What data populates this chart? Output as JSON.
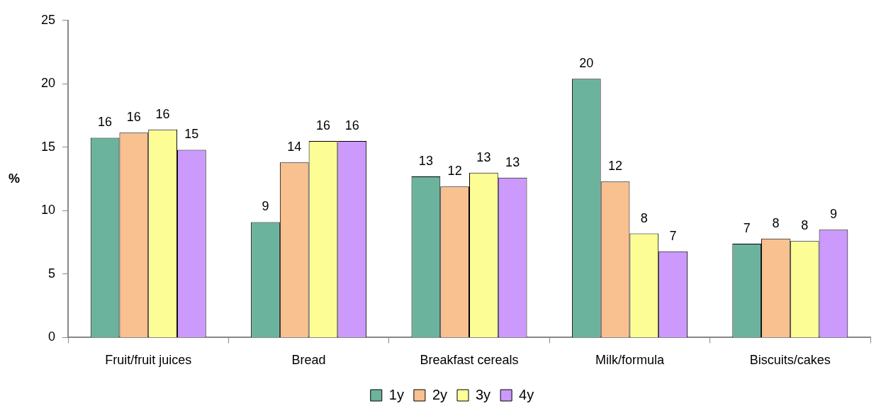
{
  "chart_data": {
    "type": "bar",
    "ylabel": "%",
    "categories": [
      "Fruit/fruit juices",
      "Bread",
      "Breakfast cereals",
      "Milk/formula",
      "Biscuits/cakes"
    ],
    "series": [
      {
        "name": "1y",
        "color": "#6bb39d",
        "values": [
          15.75,
          9.1,
          12.7,
          20.4,
          7.4
        ],
        "value_labels": [
          "16",
          "9",
          "13",
          "20",
          "7"
        ]
      },
      {
        "name": "2y",
        "color": "#f9c090",
        "values": [
          16.15,
          13.8,
          11.9,
          12.3,
          7.8
        ],
        "value_labels": [
          "16",
          "14",
          "12",
          "12",
          "8"
        ]
      },
      {
        "name": "3y",
        "color": "#fdfd96",
        "values": [
          16.4,
          15.5,
          13.0,
          8.2,
          7.6
        ],
        "value_labels": [
          "16",
          "16",
          "13",
          "8",
          "8"
        ]
      },
      {
        "name": "4y",
        "color": "#cc99fc",
        "values": [
          14.8,
          15.5,
          12.6,
          6.8,
          8.5
        ],
        "value_labels": [
          "15",
          "16",
          "13",
          "7",
          "9"
        ]
      }
    ],
    "ylim": [
      0,
      25
    ],
    "yticks": [
      0,
      5,
      10,
      15,
      20,
      25
    ],
    "grid": false,
    "legend": "bottom"
  }
}
